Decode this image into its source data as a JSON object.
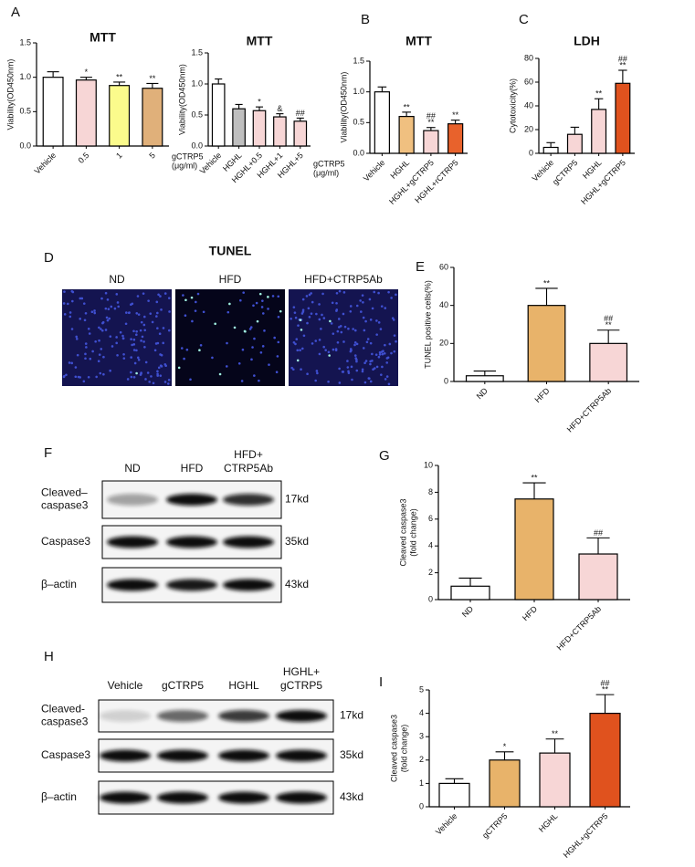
{
  "chart_data": [
    {
      "type": "bar",
      "panel": "A",
      "title": "MTT",
      "ylabel": [
        "Viability(OD450nm)"
      ],
      "x_note": [
        "gCTRP5",
        "(μg/ml)"
      ],
      "categories": [
        "Vehicle",
        "0.5",
        "1",
        "5"
      ],
      "values": [
        1.0,
        0.96,
        0.88,
        0.84
      ],
      "errors": [
        0.08,
        0.04,
        0.05,
        0.07
      ],
      "colors": [
        "#ffffff",
        "#f7d6d6",
        "#fbfb8c",
        "#e0b07a"
      ],
      "annotations": [
        null,
        [
          "*"
        ],
        [
          "**"
        ],
        [
          "**"
        ]
      ],
      "ylim": [
        0,
        1.5
      ],
      "yticks": [
        {
          "value": 0,
          "label": "0.0"
        },
        {
          "value": 0.5,
          "label": "0.5"
        },
        {
          "value": 1,
          "label": "1.0"
        },
        {
          "value": 1.5,
          "label": "1.5"
        }
      ]
    },
    {
      "type": "bar",
      "title": "MTT",
      "ylabel": [
        "Viability(OD450nm)"
      ],
      "x_note": [
        "gCTRP5",
        "(μg/ml)"
      ],
      "categories": [
        "Vehicle",
        "HGHL",
        "HGHL+0.5",
        "HGHL+1",
        "HGHL+5"
      ],
      "values": [
        1.0,
        0.6,
        0.57,
        0.47,
        0.4
      ],
      "errors": [
        0.08,
        0.07,
        0.06,
        0.05,
        0.05
      ],
      "colors": [
        "#ffffff",
        "#bfbfbf",
        "#f7d6d6",
        "#f7d6d6",
        "#f7d6d6"
      ],
      "annotations": [
        null,
        null,
        [
          "*"
        ],
        [
          "&"
        ],
        [
          "##"
        ]
      ],
      "ylim": [
        0,
        1.5
      ],
      "yticks": [
        {
          "value": 0,
          "label": "0.0"
        },
        {
          "value": 0.5,
          "label": "0.5"
        },
        {
          "value": 1,
          "label": "1.0"
        },
        {
          "value": 1.5,
          "label": "1.5"
        }
      ]
    },
    {
      "type": "bar",
      "panel": "B",
      "title": "MTT",
      "ylabel": [
        "Viability(OD450nm)"
      ],
      "categories": [
        "Vehicle",
        "HGHL",
        "HGHL+gCTRP5",
        "HGHL+rCTRP5"
      ],
      "values": [
        1.0,
        0.6,
        0.37,
        0.48
      ],
      "errors": [
        0.08,
        0.07,
        0.05,
        0.06
      ],
      "colors": [
        "#ffffff",
        "#f0c080",
        "#f7d6d6",
        "#e8622c"
      ],
      "annotations": [
        null,
        [
          "**"
        ],
        [
          "##",
          "**"
        ],
        [
          "**"
        ]
      ],
      "ylim": [
        0,
        1.5
      ],
      "yticks": [
        {
          "value": 0,
          "label": "0.0"
        },
        {
          "value": 0.5,
          "label": "0.5"
        },
        {
          "value": 1,
          "label": "1.0"
        },
        {
          "value": 1.5,
          "label": "1.5"
        }
      ]
    },
    {
      "type": "bar",
      "panel": "C",
      "title": "LDH",
      "ylabel": [
        "Cytotoxicity(%)"
      ],
      "categories": [
        "Vehicle",
        "gCTRP5",
        "HGHL",
        "HGHL+gCTRP5"
      ],
      "values": [
        5,
        16,
        37,
        59
      ],
      "errors": [
        4,
        6,
        9,
        11
      ],
      "colors": [
        "#ffffff",
        "#f7d6d6",
        "#f7d6d6",
        "#e0521e"
      ],
      "annotations": [
        null,
        null,
        [
          "**"
        ],
        [
          "##",
          "**"
        ]
      ],
      "ylim": [
        0,
        80
      ],
      "yticks": [
        0,
        20,
        40,
        60,
        80
      ]
    },
    {
      "type": "bar",
      "panel": "E",
      "ylabel": [
        "TUNEL positive cells(%)"
      ],
      "categories": [
        "ND",
        "HFD",
        "HFD+CTRP5Ab"
      ],
      "values": [
        3,
        40,
        20
      ],
      "errors": [
        2.5,
        9,
        7
      ],
      "colors": [
        "#ffffff",
        "#e8b36a",
        "#f7d6d6"
      ],
      "annotations": [
        null,
        [
          "**"
        ],
        [
          "##",
          "**"
        ]
      ],
      "ylim": [
        0,
        60
      ],
      "yticks": [
        0,
        20,
        40,
        60
      ]
    },
    {
      "type": "bar",
      "panel": "G",
      "ylabel": [
        "Cleaved caspase3",
        "(fold change)"
      ],
      "categories": [
        "ND",
        "HFD",
        "HFD+CTRP5Ab"
      ],
      "values": [
        1,
        7.5,
        3.4
      ],
      "errors": [
        0.6,
        1.2,
        1.2
      ],
      "colors": [
        "#ffffff",
        "#e8b36a",
        "#f7d6d6"
      ],
      "annotations": [
        null,
        [
          "**"
        ],
        [
          "##"
        ]
      ],
      "ylim": [
        0,
        10
      ],
      "yticks": [
        0,
        2,
        4,
        6,
        8,
        10
      ]
    },
    {
      "type": "bar",
      "panel": "I",
      "ylabel": [
        "Cleaved caspase3",
        "(fold change)"
      ],
      "categories": [
        "Vehicle",
        "gCTRP5",
        "HGHL",
        "HGHL+gCTRP5"
      ],
      "values": [
        1,
        2.0,
        2.3,
        4.0
      ],
      "errors": [
        0.2,
        0.35,
        0.6,
        0.8
      ],
      "colors": [
        "#ffffff",
        "#e8b36a",
        "#f7d6d6",
        "#e0521e"
      ],
      "annotations": [
        null,
        [
          "*"
        ],
        [
          "**"
        ],
        [
          "##",
          "**"
        ]
      ],
      "ylim": [
        0,
        5
      ],
      "yticks": [
        0,
        1,
        2,
        3,
        4,
        5
      ]
    }
  ],
  "tunel": {
    "panel": "D",
    "title": "TUNEL",
    "labels": [
      "ND",
      "HFD",
      "HFD+CTRP5Ab"
    ]
  },
  "blots": [
    {
      "panel": "F",
      "lanes": [
        [
          "ND"
        ],
        [
          "HFD"
        ],
        [
          "HFD+",
          "CTRP5Ab"
        ]
      ],
      "rows": [
        {
          "name": [
            "Cleaved–",
            "caspase3"
          ],
          "kd": "17kd"
        },
        {
          "name": [
            "Caspase3"
          ],
          "kd": "35kd"
        },
        {
          "name": [
            "β–actin"
          ],
          "kd": "43kd"
        }
      ]
    },
    {
      "panel": "H",
      "lanes": [
        [
          "Vehicle"
        ],
        [
          "gCTRP5"
        ],
        [
          "HGHL"
        ],
        [
          "HGHL+",
          "gCTRP5"
        ]
      ],
      "rows": [
        {
          "name": [
            "Cleaved-",
            "caspase3"
          ],
          "kd": "17kd"
        },
        {
          "name": [
            "Caspase3"
          ],
          "kd": "35kd"
        },
        {
          "name": [
            "β–actin"
          ],
          "kd": "43kd"
        }
      ]
    }
  ]
}
